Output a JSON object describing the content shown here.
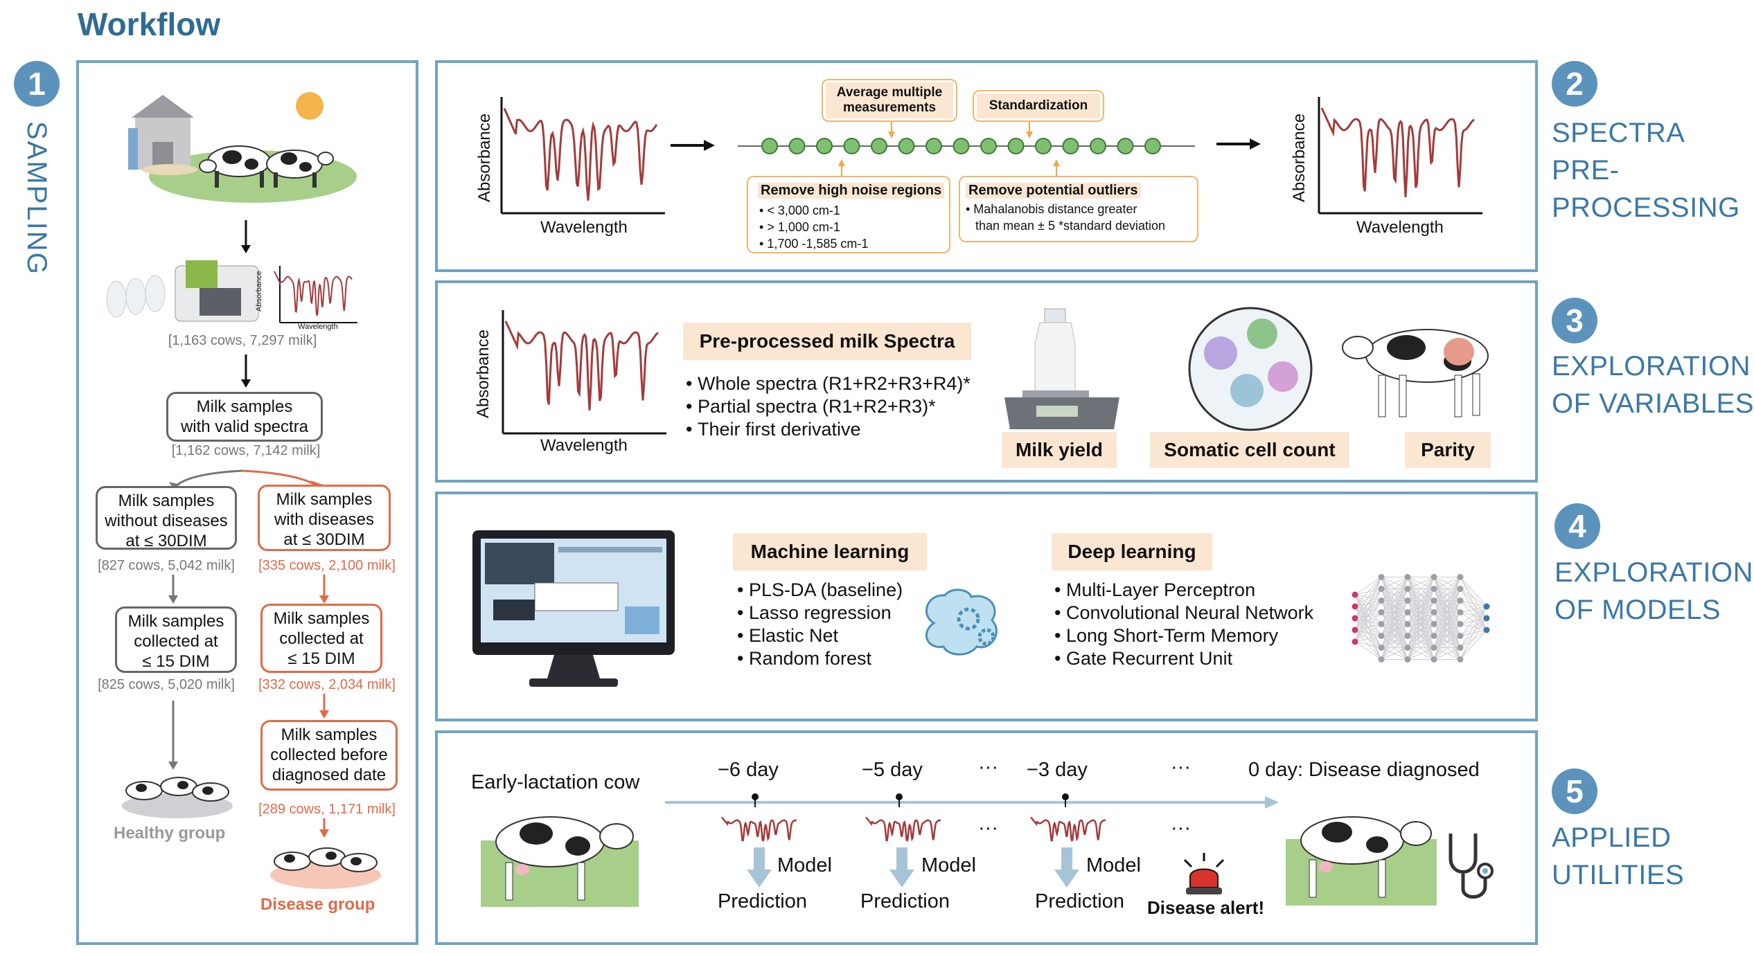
{
  "title": "Workflow",
  "sections": {
    "s1": {
      "number": "1",
      "label": "SAMPLING"
    },
    "s2": {
      "number": "2",
      "label_lines": [
        "SPECTRA",
        "PRE-",
        "PROCESSING"
      ]
    },
    "s3": {
      "number": "3",
      "label_lines": [
        "EXPLORATION",
        "OF VARIABLES"
      ]
    },
    "s4": {
      "number": "4",
      "label_lines": [
        "EXPLORATION",
        "OF MODELS"
      ]
    },
    "s5": {
      "number": "5",
      "label_lines": [
        "APPLIED",
        "UTILITIES"
      ]
    }
  },
  "sampling": {
    "mini_spectrum": {
      "ylabel": "Absorbance",
      "xlabel": "Wavelength"
    },
    "count_all": "[1,163 cows, 7,297 milk]",
    "valid_box": [
      "Milk samples",
      "with valid spectra"
    ],
    "count_valid": "[1,162 cows, 7,142 milk]",
    "healthy_box1": [
      "Milk samples",
      "without diseases",
      "at ≤ 30DIM"
    ],
    "count_healthy1": "[827 cows, 5,042 milk]",
    "disease_box1": [
      "Milk samples",
      "with diseases",
      "at ≤ 30DIM"
    ],
    "count_disease1": "[335 cows, 2,100 milk]",
    "healthy_box2": [
      "Milk samples",
      "collected at",
      "≤ 15 DIM"
    ],
    "count_healthy2": "[825 cows, 5,020 milk]",
    "disease_box2": [
      "Milk samples",
      "collected at",
      "≤ 15 DIM"
    ],
    "count_disease2": "[332 cows, 2,034 milk]",
    "disease_box3": [
      "Milk samples",
      "collected before",
      "diagnosed date"
    ],
    "count_disease3": "[289 cows, 1,171 milk]",
    "healthy_group": "Healthy group",
    "disease_group": "Disease group"
  },
  "preprocessing": {
    "ylabel": "Absorbance",
    "xlabel": "Wavelength",
    "avg_box": [
      "Average multiple",
      "measurements"
    ],
    "std_box": "Standardization",
    "noise_title": "Remove high noise regions",
    "noise_items": [
      "< 3,000 cm-1",
      "> 1,000 cm-1",
      "1,700 -1,585 cm-1"
    ],
    "outlier_title": "Remove potential outliers",
    "outlier_lines": [
      "• Mahalanobis distance greater",
      "than mean ± 5 *standard deviation"
    ]
  },
  "variables": {
    "ylabel": "Absorbance",
    "xlabel": "Wavelength",
    "spectra_title": "Pre-processed milk Spectra",
    "spectra_items": [
      "Whole spectra (R1+R2+R3+R4)*",
      "Partial spectra (R1+R2+R3)*",
      "Their first derivative"
    ],
    "milk_yield": "Milk yield",
    "scc": "Somatic cell count",
    "parity": "Parity"
  },
  "models": {
    "ml_title": "Machine learning",
    "ml_items": [
      "PLS-DA (baseline)",
      "Lasso regression",
      "Elastic Net",
      "Random forest"
    ],
    "dl_title": "Deep learning",
    "dl_items": [
      "Multi-Layer Perceptron",
      "Convolutional Neural Network",
      "Long Short-Term Memory",
      "Gate Recurrent Unit"
    ]
  },
  "utilities": {
    "cow_label": "Early-lactation cow",
    "day6": "−6 day",
    "day5": "−5 day",
    "day3": "−3 day",
    "ellipsis": "···",
    "day0": "0 day: Disease diagnosed",
    "model": "Model",
    "prediction": "Prediction",
    "alert": "Disease alert!"
  },
  "colors": {
    "accent": "#5b93bd",
    "border": "#6fa3c4",
    "spectrum": "#a23b3b",
    "disease": "#e06a48",
    "tag": "#fbe6d2",
    "node": "#7fbf72"
  }
}
